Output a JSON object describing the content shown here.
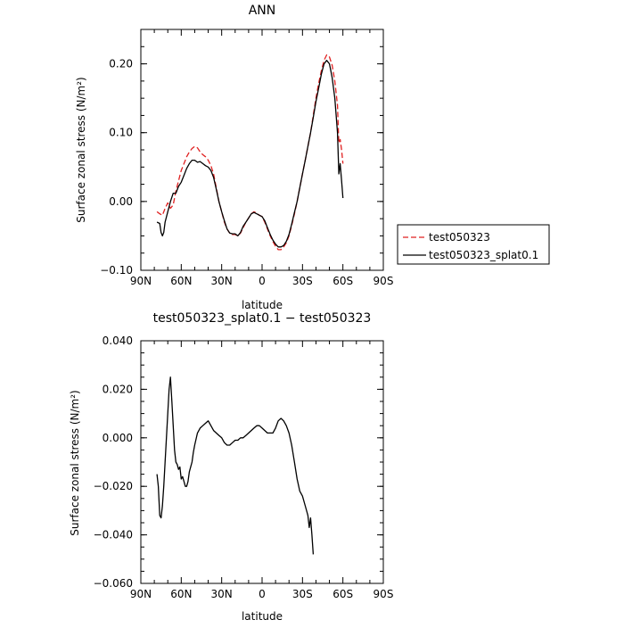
{
  "chart_data": [
    {
      "type": "line",
      "title": "ANN",
      "xlabel": "latitude",
      "ylabel": "Surface zonal stress (N/m²)",
      "xlim": [
        90,
        -90
      ],
      "ylim": [
        -0.1,
        0.25
      ],
      "x_ticks": [
        90,
        60,
        30,
        0,
        -30,
        -60,
        -90
      ],
      "x_tick_labels": [
        "90N",
        "60N",
        "30N",
        "0",
        "30S",
        "60S",
        "90S"
      ],
      "y_ticks": [
        -0.1,
        0.0,
        0.1,
        0.2
      ],
      "y_tick_labels": [
        "−0.10",
        "0.00",
        "0.10",
        "0.20"
      ],
      "legend": {
        "placement": "outside-right",
        "entries": [
          "test050323",
          "test050323_splat0.1"
        ]
      },
      "series": [
        {
          "name": "test050323",
          "color": "#e02020",
          "dash": "dashed",
          "points": [
            [
              78,
              -0.015
            ],
            [
              76,
              -0.018
            ],
            [
              74,
              -0.02
            ],
            [
              72,
              -0.01
            ],
            [
              70,
              -0.002
            ],
            [
              68,
              -0.01
            ],
            [
              66,
              -0.005
            ],
            [
              64,
              0.015
            ],
            [
              62,
              0.03
            ],
            [
              60,
              0.045
            ],
            [
              58,
              0.055
            ],
            [
              56,
              0.065
            ],
            [
              54,
              0.072
            ],
            [
              52,
              0.077
            ],
            [
              50,
              0.08
            ],
            [
              48,
              0.078
            ],
            [
              46,
              0.072
            ],
            [
              44,
              0.068
            ],
            [
              42,
              0.065
            ],
            [
              40,
              0.06
            ],
            [
              38,
              0.052
            ],
            [
              36,
              0.04
            ],
            [
              34,
              0.02
            ],
            [
              32,
              0.0
            ],
            [
              30,
              -0.015
            ],
            [
              28,
              -0.03
            ],
            [
              26,
              -0.04
            ],
            [
              24,
              -0.046
            ],
            [
              22,
              -0.048
            ],
            [
              20,
              -0.048
            ],
            [
              18,
              -0.05
            ],
            [
              16,
              -0.046
            ],
            [
              14,
              -0.038
            ],
            [
              12,
              -0.03
            ],
            [
              10,
              -0.024
            ],
            [
              8,
              -0.018
            ],
            [
              6,
              -0.015
            ],
            [
              4,
              -0.017
            ],
            [
              2,
              -0.02
            ],
            [
              0,
              -0.022
            ],
            [
              -2,
              -0.03
            ],
            [
              -4,
              -0.04
            ],
            [
              -6,
              -0.05
            ],
            [
              -8,
              -0.058
            ],
            [
              -10,
              -0.065
            ],
            [
              -12,
              -0.07
            ],
            [
              -14,
              -0.07
            ],
            [
              -16,
              -0.066
            ],
            [
              -18,
              -0.06
            ],
            [
              -20,
              -0.05
            ],
            [
              -22,
              -0.035
            ],
            [
              -24,
              -0.018
            ],
            [
              -26,
              0.0
            ],
            [
              -28,
              0.02
            ],
            [
              -30,
              0.04
            ],
            [
              -32,
              0.06
            ],
            [
              -34,
              0.08
            ],
            [
              -36,
              0.1
            ],
            [
              -38,
              0.125
            ],
            [
              -40,
              0.15
            ],
            [
              -42,
              0.172
            ],
            [
              -44,
              0.19
            ],
            [
              -46,
              0.205
            ],
            [
              -48,
              0.213
            ],
            [
              -50,
              0.21
            ],
            [
              -52,
              0.198
            ],
            [
              -54,
              0.175
            ],
            [
              -56,
              0.14
            ],
            [
              -57,
              0.085
            ],
            [
              -58,
              0.09
            ],
            [
              -59,
              0.075
            ],
            [
              -60,
              0.055
            ]
          ]
        },
        {
          "name": "test050323_splat0.1",
          "color": "#000000",
          "dash": "solid",
          "points": [
            [
              78,
              -0.03
            ],
            [
              76,
              -0.032
            ],
            [
              75,
              -0.045
            ],
            [
              74,
              -0.05
            ],
            [
              73,
              -0.045
            ],
            [
              72,
              -0.03
            ],
            [
              70,
              -0.015
            ],
            [
              68,
              0.0
            ],
            [
              66,
              0.012
            ],
            [
              64,
              0.012
            ],
            [
              62,
              0.022
            ],
            [
              60,
              0.028
            ],
            [
              58,
              0.038
            ],
            [
              56,
              0.048
            ],
            [
              54,
              0.055
            ],
            [
              52,
              0.06
            ],
            [
              50,
              0.06
            ],
            [
              48,
              0.057
            ],
            [
              46,
              0.058
            ],
            [
              44,
              0.055
            ],
            [
              42,
              0.052
            ],
            [
              40,
              0.05
            ],
            [
              38,
              0.045
            ],
            [
              36,
              0.035
            ],
            [
              34,
              0.018
            ],
            [
              32,
              0.0
            ],
            [
              30,
              -0.015
            ],
            [
              28,
              -0.028
            ],
            [
              26,
              -0.04
            ],
            [
              24,
              -0.046
            ],
            [
              22,
              -0.047
            ],
            [
              20,
              -0.047
            ],
            [
              18,
              -0.05
            ],
            [
              16,
              -0.045
            ],
            [
              14,
              -0.036
            ],
            [
              12,
              -0.03
            ],
            [
              10,
              -0.024
            ],
            [
              8,
              -0.018
            ],
            [
              6,
              -0.016
            ],
            [
              4,
              -0.018
            ],
            [
              2,
              -0.02
            ],
            [
              0,
              -0.022
            ],
            [
              -2,
              -0.028
            ],
            [
              -4,
              -0.038
            ],
            [
              -6,
              -0.048
            ],
            [
              -8,
              -0.056
            ],
            [
              -10,
              -0.062
            ],
            [
              -12,
              -0.066
            ],
            [
              -14,
              -0.066
            ],
            [
              -16,
              -0.064
            ],
            [
              -18,
              -0.058
            ],
            [
              -20,
              -0.048
            ],
            [
              -22,
              -0.033
            ],
            [
              -24,
              -0.016
            ],
            [
              -26,
              0.0
            ],
            [
              -28,
              0.02
            ],
            [
              -30,
              0.04
            ],
            [
              -32,
              0.06
            ],
            [
              -34,
              0.08
            ],
            [
              -36,
              0.1
            ],
            [
              -38,
              0.122
            ],
            [
              -40,
              0.145
            ],
            [
              -42,
              0.165
            ],
            [
              -44,
              0.185
            ],
            [
              -46,
              0.2
            ],
            [
              -48,
              0.205
            ],
            [
              -50,
              0.2
            ],
            [
              -52,
              0.18
            ],
            [
              -54,
              0.15
            ],
            [
              -56,
              0.1
            ],
            [
              -57,
              0.04
            ],
            [
              -58,
              0.055
            ],
            [
              -59,
              0.03
            ],
            [
              -60,
              0.005
            ]
          ]
        }
      ]
    },
    {
      "type": "line",
      "title": "test050323_splat0.1 − test050323",
      "xlabel": "latitude",
      "ylabel": "Surface zonal stress (N/m²)",
      "xlim": [
        90,
        -90
      ],
      "ylim": [
        -0.06,
        0.04
      ],
      "x_ticks": [
        90,
        60,
        30,
        0,
        -30,
        -60,
        -90
      ],
      "x_tick_labels": [
        "90N",
        "60N",
        "30N",
        "0",
        "30S",
        "60S",
        "90S"
      ],
      "y_ticks": [
        -0.06,
        -0.04,
        -0.02,
        0.0,
        0.02,
        0.04
      ],
      "y_tick_labels": [
        "−0.060",
        "−0.040",
        "−0.020",
        "0.000",
        "0.020",
        "0.040"
      ],
      "series": [
        {
          "color": "#000000",
          "dash": "solid",
          "points": [
            [
              78,
              -0.015
            ],
            [
              77,
              -0.02
            ],
            [
              76,
              -0.032
            ],
            [
              75,
              -0.033
            ],
            [
              74,
              -0.028
            ],
            [
              73,
              -0.02
            ],
            [
              72,
              -0.01
            ],
            [
              71,
              0.0
            ],
            [
              70,
              0.01
            ],
            [
              69,
              0.02
            ],
            [
              68,
              0.025
            ],
            [
              67,
              0.015
            ],
            [
              66,
              0.005
            ],
            [
              65,
              -0.005
            ],
            [
              64,
              -0.01
            ],
            [
              63,
              -0.011
            ],
            [
              62,
              -0.013
            ],
            [
              61,
              -0.012
            ],
            [
              60,
              -0.017
            ],
            [
              59,
              -0.016
            ],
            [
              58,
              -0.018
            ],
            [
              57,
              -0.02
            ],
            [
              56,
              -0.02
            ],
            [
              55,
              -0.018
            ],
            [
              54,
              -0.014
            ],
            [
              53,
              -0.012
            ],
            [
              52,
              -0.01
            ],
            [
              51,
              -0.006
            ],
            [
              50,
              -0.003
            ],
            [
              48,
              0.002
            ],
            [
              46,
              0.004
            ],
            [
              44,
              0.005
            ],
            [
              42,
              0.006
            ],
            [
              40,
              0.007
            ],
            [
              38,
              0.005
            ],
            [
              36,
              0.003
            ],
            [
              34,
              0.002
            ],
            [
              32,
              0.001
            ],
            [
              30,
              0.0
            ],
            [
              28,
              -0.002
            ],
            [
              26,
              -0.003
            ],
            [
              24,
              -0.003
            ],
            [
              22,
              -0.002
            ],
            [
              20,
              -0.001
            ],
            [
              18,
              -0.001
            ],
            [
              16,
              0.0
            ],
            [
              14,
              0.0
            ],
            [
              12,
              0.001
            ],
            [
              10,
              0.002
            ],
            [
              8,
              0.003
            ],
            [
              6,
              0.004
            ],
            [
              4,
              0.005
            ],
            [
              2,
              0.005
            ],
            [
              0,
              0.004
            ],
            [
              -2,
              0.003
            ],
            [
              -4,
              0.002
            ],
            [
              -6,
              0.002
            ],
            [
              -8,
              0.002
            ],
            [
              -10,
              0.004
            ],
            [
              -12,
              0.007
            ],
            [
              -14,
              0.008
            ],
            [
              -16,
              0.007
            ],
            [
              -18,
              0.005
            ],
            [
              -20,
              0.002
            ],
            [
              -22,
              -0.003
            ],
            [
              -24,
              -0.01
            ],
            [
              -26,
              -0.017
            ],
            [
              -28,
              -0.022
            ],
            [
              -30,
              -0.024
            ],
            [
              -32,
              -0.028
            ],
            [
              -34,
              -0.032
            ],
            [
              -35,
              -0.037
            ],
            [
              -36,
              -0.033
            ],
            [
              -37,
              -0.04
            ],
            [
              -38,
              -0.048
            ]
          ]
        }
      ]
    }
  ]
}
